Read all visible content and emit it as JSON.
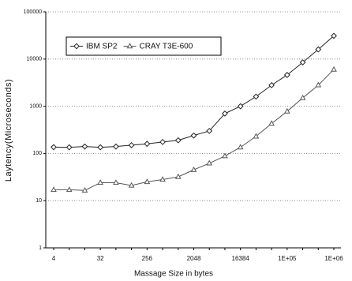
{
  "chart_data": {
    "type": "line",
    "x_label": "Massage Size in bytes",
    "y_label": "Laytency(Microseconds)",
    "categories": [
      "4",
      null,
      null,
      "32",
      null,
      null,
      "256",
      null,
      null,
      "2048",
      null,
      null,
      "16384",
      null,
      null,
      "1E+05",
      null,
      null,
      "1E+06"
    ],
    "series": [
      {
        "name": "IBM SP2",
        "color": "#222222",
        "marker": "diamond",
        "values": [
          136,
          135,
          140,
          135,
          140,
          150,
          160,
          175,
          190,
          240,
          300,
          700,
          1000,
          1600,
          2800,
          4600,
          8500,
          16000,
          31000
        ]
      },
      {
        "name": "CRAY T3E-600",
        "color": "#555555",
        "marker": "triangle",
        "values": [
          17,
          17,
          16.5,
          24,
          24,
          21,
          25,
          28,
          32,
          45,
          62,
          88,
          135,
          230,
          430,
          780,
          1500,
          2800,
          6000
        ]
      }
    ],
    "ylim": [
      1,
      100000
    ],
    "yticks": [
      1,
      10,
      100,
      1000,
      10000,
      100000
    ],
    "y_scale": "log",
    "grid": true,
    "legend": "upper left"
  }
}
